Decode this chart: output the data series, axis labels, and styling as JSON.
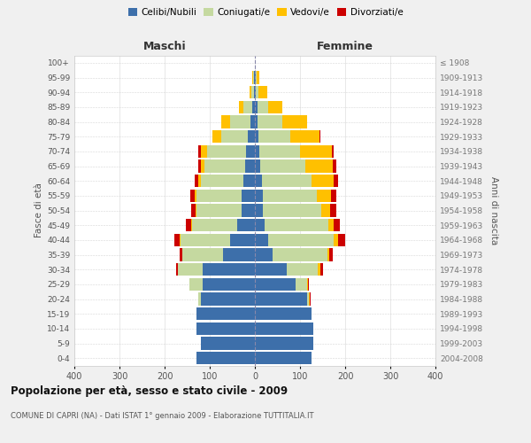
{
  "age_groups": [
    "0-4",
    "5-9",
    "10-14",
    "15-19",
    "20-24",
    "25-29",
    "30-34",
    "35-39",
    "40-44",
    "45-49",
    "50-54",
    "55-59",
    "60-64",
    "65-69",
    "70-74",
    "75-79",
    "80-84",
    "85-89",
    "90-94",
    "95-99",
    "100+"
  ],
  "birth_years": [
    "2004-2008",
    "1999-2003",
    "1994-1998",
    "1989-1993",
    "1984-1988",
    "1979-1983",
    "1974-1978",
    "1969-1973",
    "1964-1968",
    "1959-1963",
    "1954-1958",
    "1949-1953",
    "1944-1948",
    "1939-1943",
    "1934-1938",
    "1929-1933",
    "1924-1928",
    "1919-1923",
    "1914-1918",
    "1909-1913",
    "≤ 1908"
  ],
  "maschi": {
    "celibi": [
      130,
      120,
      130,
      130,
      120,
      115,
      115,
      70,
      55,
      40,
      30,
      30,
      25,
      22,
      20,
      15,
      10,
      5,
      2,
      2,
      0
    ],
    "coniugati": [
      0,
      0,
      0,
      0,
      5,
      30,
      55,
      90,
      110,
      100,
      100,
      100,
      95,
      90,
      85,
      60,
      45,
      20,
      5,
      2,
      0
    ],
    "vedovi": [
      0,
      0,
      0,
      0,
      0,
      0,
      0,
      1,
      2,
      2,
      2,
      3,
      5,
      8,
      15,
      20,
      20,
      10,
      5,
      2,
      0
    ],
    "divorziati": [
      0,
      0,
      0,
      0,
      0,
      0,
      5,
      5,
      12,
      10,
      10,
      10,
      8,
      5,
      5,
      0,
      0,
      0,
      0,
      0,
      0
    ]
  },
  "femmine": {
    "nubili": [
      125,
      130,
      130,
      125,
      115,
      90,
      70,
      40,
      30,
      22,
      18,
      18,
      15,
      12,
      10,
      8,
      5,
      5,
      2,
      2,
      0
    ],
    "coniugate": [
      0,
      0,
      0,
      0,
      5,
      25,
      70,
      120,
      145,
      140,
      130,
      120,
      110,
      100,
      90,
      70,
      55,
      25,
      5,
      2,
      0
    ],
    "vedove": [
      0,
      0,
      0,
      0,
      2,
      2,
      5,
      5,
      10,
      12,
      18,
      30,
      50,
      60,
      70,
      65,
      55,
      30,
      20,
      5,
      0
    ],
    "divorziate": [
      0,
      0,
      0,
      0,
      2,
      2,
      5,
      8,
      15,
      15,
      15,
      12,
      10,
      8,
      5,
      2,
      0,
      0,
      0,
      0,
      0
    ]
  },
  "colors": {
    "celibi_nubili": "#3d6faa",
    "coniugati_e": "#c5d9a0",
    "vedovi_e": "#ffc000",
    "divorziati_e": "#cc0000"
  },
  "title": "Popolazione per età, sesso e stato civile - 2009",
  "subtitle": "COMUNE DI CAPRI (NA) - Dati ISTAT 1° gennaio 2009 - Elaborazione TUTTITALIA.IT",
  "xlabel_left": "Maschi",
  "xlabel_right": "Femmine",
  "ylabel_left": "Fasce di età",
  "ylabel_right": "Anni di nascita",
  "xlim": 400,
  "background_color": "#f0f0f0",
  "plot_background": "#ffffff",
  "grid_color": "#cccccc"
}
